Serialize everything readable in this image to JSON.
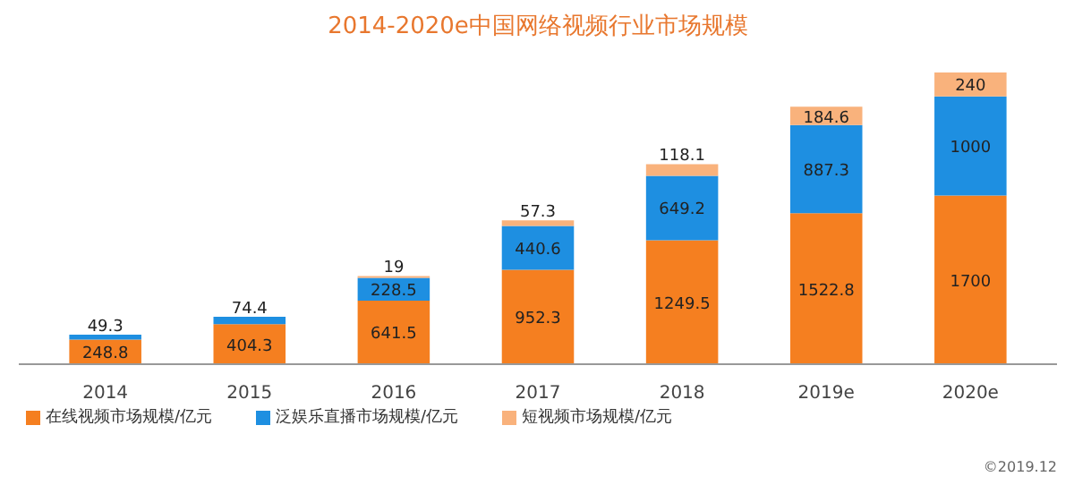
{
  "chart_data": {
    "type": "bar",
    "title": "2014-2020e中国网络视频行业市场规模",
    "stacked": true,
    "data_labels": true,
    "legend": "bottom",
    "grid": false,
    "categories": [
      "2014",
      "2015",
      "2016",
      "2017",
      "2018",
      "2019e",
      "2020e"
    ],
    "series": [
      {
        "name": "在线视频市场规模/亿元",
        "color": "#f57f20",
        "values": [
          248.8,
          404.3,
          641.5,
          952.3,
          1249.5,
          1522.8,
          1700
        ]
      },
      {
        "name": "泛娱乐直播市场规模/亿元",
        "color": "#1e8fe1",
        "values": [
          49.3,
          74.4,
          228.5,
          440.6,
          649.2,
          887.3,
          1000
        ]
      },
      {
        "name": "短视频市场规模/亿元",
        "color": "#f9b27c",
        "values": [
          null,
          null,
          19,
          57.3,
          118.1,
          184.6,
          240
        ]
      }
    ],
    "annotations": [
      "©2019.12"
    ]
  }
}
